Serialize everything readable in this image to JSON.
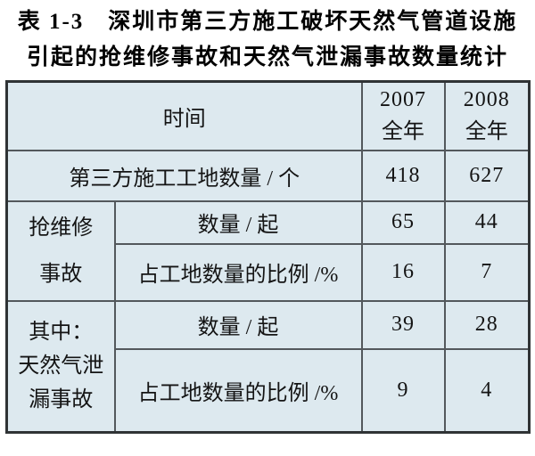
{
  "title": {
    "line1": "表 1-3　深圳市第三方施工破坏天然气管道设施",
    "line2": "引起的抢维修事故和天然气泄漏事故数量统计"
  },
  "table": {
    "time_header": "时间",
    "years": [
      {
        "year": "2007",
        "period": "全年"
      },
      {
        "year": "2008",
        "period": "全年"
      }
    ],
    "site_row": {
      "label": "第三方施工工地数量 / 个",
      "v2007": "418",
      "v2008": "627"
    },
    "group1": {
      "label_line1": "抢维修",
      "label_line2": "事故",
      "count_row": {
        "label": "数量 / 起",
        "v2007": "65",
        "v2008": "44"
      },
      "ratio_row": {
        "label": "占工地数量的比例 /%",
        "v2007": "16",
        "v2008": "7"
      }
    },
    "group2": {
      "label_line1": "其中：",
      "label_line2": "天然气泄",
      "label_line3": "漏事故",
      "count_row": {
        "label": "数量 / 起",
        "v2007": "39",
        "v2008": "28"
      },
      "ratio_row": {
        "label": "占工地数量的比例 /%",
        "v2007": "9",
        "v2008": "4"
      }
    }
  },
  "colors": {
    "cell_fill": "#dde9ef",
    "outer_border": "#2f3335",
    "inner_border": "#53585c",
    "text": "#141414",
    "page_background": "#ffffff"
  },
  "chart_data": {
    "type": "table",
    "title": "表1-3 深圳市第三方施工破坏天然气管道设施引起的抢维修事故和天然气泄漏事故数量统计",
    "columns": [
      "时间",
      "2007全年",
      "2008全年"
    ],
    "rows": [
      [
        "第三方施工工地数量/个",
        418,
        627
      ],
      [
        "抢维修事故 数量/起",
        65,
        44
      ],
      [
        "抢维修事故 占工地数量的比例/%",
        16,
        7
      ],
      [
        "其中：天然气泄漏事故 数量/起",
        39,
        28
      ],
      [
        "其中：天然气泄漏事故 占工地数量的比例/%",
        9,
        4
      ]
    ]
  }
}
